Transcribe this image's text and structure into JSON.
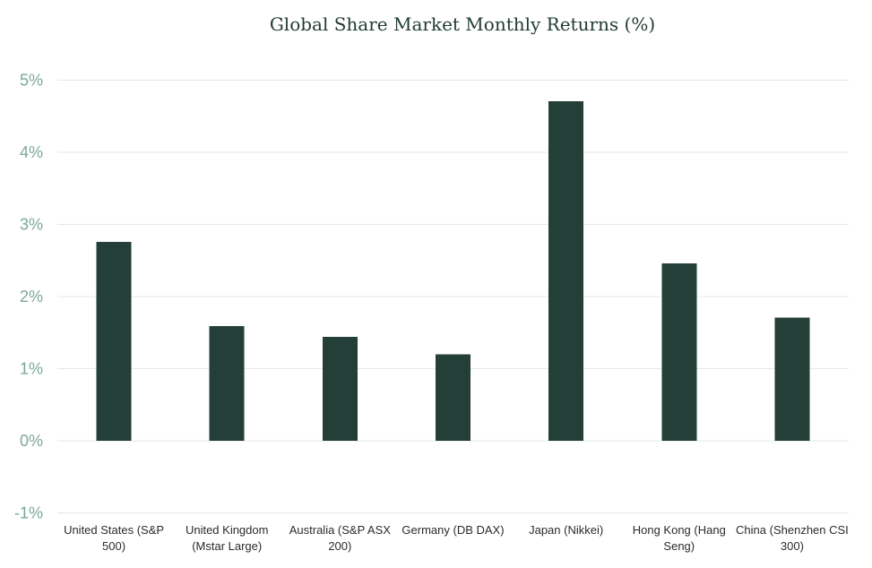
{
  "chart_data": {
    "type": "bar",
    "title": "Global Share Market Monthly Returns (%)",
    "xlabel": "",
    "ylabel": "",
    "categories": [
      [
        "United States (S&P",
        "500)"
      ],
      [
        "United Kingdom",
        "(Mstar Large)"
      ],
      [
        "Australia (S&P ASX",
        "200)"
      ],
      [
        "Germany (DB DAX)"
      ],
      [
        "Japan (Nikkei)"
      ],
      [
        "Hong Kong (Hang",
        "Seng)"
      ],
      [
        "China (Shenzhen CSI",
        "300)"
      ]
    ],
    "values": [
      2.76,
      1.59,
      1.44,
      1.2,
      4.71,
      2.46,
      1.71
    ],
    "ylim": [
      -1,
      5
    ],
    "yticks": [
      -1,
      0,
      1,
      2,
      3,
      4,
      5
    ],
    "ytick_labels": [
      "-1%",
      "0%",
      "1%",
      "2%",
      "3%",
      "4%",
      "5%"
    ],
    "grid": true,
    "legend": "none",
    "bar_color": "#243f38",
    "grid_color": "#e4e8e6"
  }
}
